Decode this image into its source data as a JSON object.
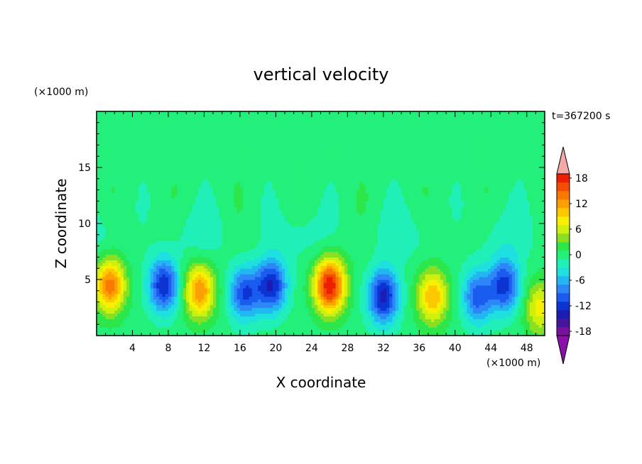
{
  "chart_data": {
    "type": "heatmap",
    "title": "vertical velocity",
    "xlabel": "X coordinate",
    "ylabel": "Z coordinate",
    "x_unit_label": "(×1000 m)",
    "y_unit_label": "(×1000 m)",
    "time_label": "t=367200 s",
    "xlim": [
      0,
      50
    ],
    "ylim": [
      0,
      20
    ],
    "x_ticks": [
      4,
      8,
      12,
      16,
      20,
      24,
      28,
      32,
      36,
      40,
      44,
      48
    ],
    "y_ticks": [
      5,
      10,
      15
    ],
    "colorbar": {
      "min": -20,
      "max": 20,
      "step": 3,
      "labels": [
        18,
        12,
        6,
        0,
        -6,
        -12,
        -18
      ],
      "colors": [
        "#7a0fa0",
        "#46169a",
        "#1c1cb4",
        "#0d34d2",
        "#1a5cf0",
        "#2e86f8",
        "#22b6f2",
        "#1fe0e0",
        "#20f0b8",
        "#22f07a",
        "#2de64a",
        "#8ae020",
        "#cef00e",
        "#f8f000",
        "#fcc800",
        "#fba000",
        "#f87800",
        "#f44c00",
        "#ec2000",
        "#f5a8a8"
      ],
      "over_color": "#f5a8a8",
      "under_color": "#8a10a8"
    },
    "field": {
      "description_values": "w(x,z) in m/s, sampled features",
      "cells": [
        {
          "x": 1.5,
          "z": 4.5,
          "w": 14
        },
        {
          "x": 7.5,
          "z": 4.5,
          "w": -13
        },
        {
          "x": 11.5,
          "z": 4.0,
          "w": 13
        },
        {
          "x": 16.5,
          "z": 3.8,
          "w": -11
        },
        {
          "x": 19.5,
          "z": 4.5,
          "w": -13
        },
        {
          "x": 26.0,
          "z": 4.5,
          "w": 19
        },
        {
          "x": 32.0,
          "z": 3.5,
          "w": -14
        },
        {
          "x": 37.5,
          "z": 3.5,
          "w": 11
        },
        {
          "x": 42.5,
          "z": 3.5,
          "w": -10
        },
        {
          "x": 45.5,
          "z": 4.5,
          "w": -12
        },
        {
          "x": 49.5,
          "z": 2.5,
          "w": 8
        }
      ]
    }
  }
}
